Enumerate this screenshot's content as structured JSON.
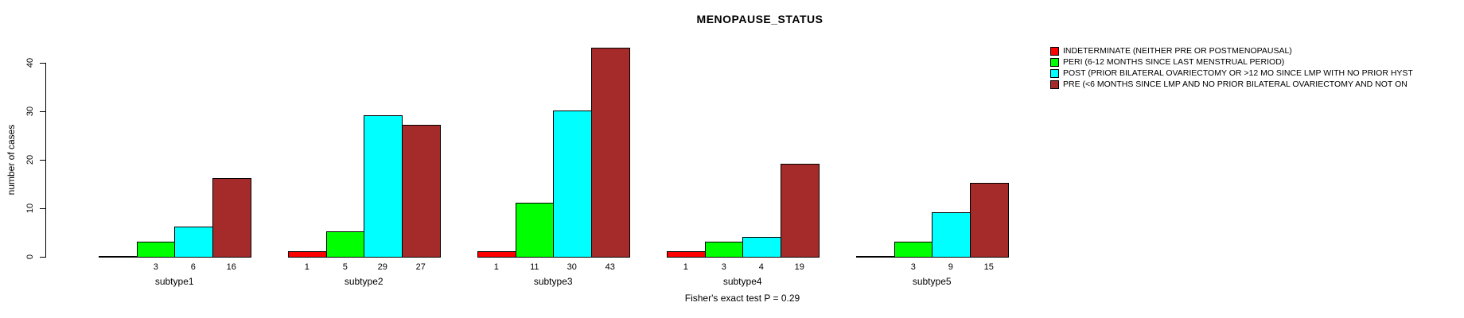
{
  "title": "MENOPAUSE_STATUS",
  "footer": "Fisher's exact test P = 0.29",
  "chart_data": {
    "type": "bar",
    "title": "MENOPAUSE_STATUS",
    "xlabel": "",
    "ylabel": "number of cases",
    "categories": [
      "subtype1",
      "subtype2",
      "subtype3",
      "subtype4",
      "subtype5"
    ],
    "series": [
      {
        "name": "INDETERMINATE (NEITHER PRE OR POSTMENOPAUSAL)",
        "color": "#FF0000",
        "values": [
          0,
          1,
          1,
          1,
          0
        ]
      },
      {
        "name": "PERI (6-12 MONTHS SINCE LAST MENSTRUAL PERIOD)",
        "color": "#00FF00",
        "values": [
          3,
          5,
          11,
          3,
          3
        ]
      },
      {
        "name": "POST (PRIOR BILATERAL OVARIECTOMY OR >12 MO SINCE LMP WITH NO PRIOR HYST",
        "color": "#00FFFF",
        "values": [
          6,
          29,
          30,
          4,
          9
        ]
      },
      {
        "name": "PRE (<6 MONTHS SINCE LMP AND NO PRIOR BILATERAL OVARIECTOMY AND NOT ON",
        "color": "#A52A2A",
        "values": [
          16,
          27,
          43,
          19,
          15
        ]
      }
    ],
    "ylim": [
      0,
      40
    ],
    "yticks": [
      0,
      10,
      20,
      30,
      40
    ],
    "bar_value_labels": true,
    "grid": false,
    "legend_position": "right",
    "annotation": "Fisher's exact test P = 0.29"
  }
}
